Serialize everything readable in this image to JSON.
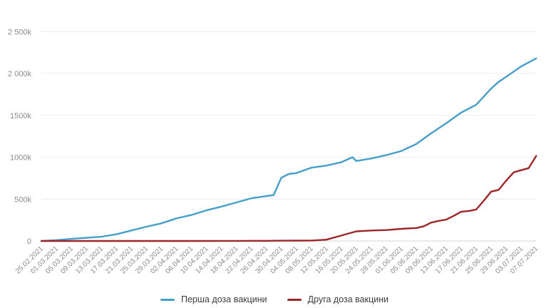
{
  "page": {
    "background": "#ffffff"
  },
  "chart_data": {
    "type": "line",
    "grid": {
      "horizontal": true,
      "vertical": false,
      "color": "#ececec",
      "zero_line_color": "#d7d7d7"
    },
    "legend": {
      "position": "bottom-center"
    },
    "y_axis": {
      "range": [
        0,
        2500
      ],
      "unit": "thousands of doses",
      "ticks": [
        {
          "value": 0,
          "label": "0"
        },
        {
          "value": 500,
          "label": "500k"
        },
        {
          "value": 1000,
          "label": "1000k"
        },
        {
          "value": 1500,
          "label": "1500k"
        },
        {
          "value": 2000,
          "label": "2 000k"
        },
        {
          "value": 2500,
          "label": "2 500k"
        }
      ]
    },
    "x_axis": {
      "range_days": [
        0,
        132
      ],
      "days_per_tick": 4,
      "tick_labels": [
        "25.02.2021",
        "01.03.2021",
        "05.03.2021",
        "09.03.2021",
        "13.03.2021",
        "17.03.2021",
        "21.03.2021",
        "25.03.2021",
        "29.03.2021",
        "02.04.2021",
        "06.04.2021",
        "10.04.2021",
        "14.04.2021",
        "18.04.2021",
        "22.04.2021",
        "26.04.2021",
        "30.04.2021",
        "04.05.2021",
        "08.05.2021",
        "12.05.2021",
        "16.05.2021",
        "20.05.2021",
        "24.05.2021",
        "28.05.2021",
        "01.06.2021",
        "05.06.2021",
        "09.06.2021",
        "13.06.2021",
        "17.06.2021",
        "21.06.2021",
        "25.06.2021",
        "29.06.2021",
        "03.07.2021",
        "07.07.2021"
      ]
    },
    "series": [
      {
        "name": "Перша доза вакцини",
        "color": "#459fc9",
        "points_day_valueK": [
          [
            0,
            1
          ],
          [
            4,
            10
          ],
          [
            8,
            25
          ],
          [
            12,
            38
          ],
          [
            16,
            50
          ],
          [
            20,
            80
          ],
          [
            24,
            125
          ],
          [
            28,
            170
          ],
          [
            32,
            210
          ],
          [
            36,
            270
          ],
          [
            40,
            310
          ],
          [
            44,
            365
          ],
          [
            48,
            410
          ],
          [
            52,
            460
          ],
          [
            56,
            510
          ],
          [
            60,
            535
          ],
          [
            62,
            550
          ],
          [
            64,
            755
          ],
          [
            66,
            800
          ],
          [
            68,
            810
          ],
          [
            72,
            875
          ],
          [
            76,
            900
          ],
          [
            80,
            940
          ],
          [
            83,
            1000
          ],
          [
            84,
            955
          ],
          [
            88,
            985
          ],
          [
            92,
            1025
          ],
          [
            96,
            1073
          ],
          [
            100,
            1158
          ],
          [
            104,
            1286
          ],
          [
            108,
            1405
          ],
          [
            112,
            1533
          ],
          [
            116,
            1627
          ],
          [
            120,
            1820
          ],
          [
            122,
            1900
          ],
          [
            124,
            1960
          ],
          [
            128,
            2085
          ],
          [
            132,
            2180
          ]
        ]
      },
      {
        "name": "Друга доза вакцини",
        "color": "#9c2628",
        "points_day_valueK": [
          [
            0,
            0
          ],
          [
            8,
            0
          ],
          [
            16,
            0
          ],
          [
            24,
            0
          ],
          [
            32,
            0
          ],
          [
            40,
            0
          ],
          [
            48,
            1
          ],
          [
            52,
            1
          ],
          [
            56,
            2
          ],
          [
            60,
            2
          ],
          [
            64,
            3
          ],
          [
            68,
            4
          ],
          [
            72,
            5
          ],
          [
            76,
            15
          ],
          [
            80,
            65
          ],
          [
            84,
            115
          ],
          [
            88,
            125
          ],
          [
            92,
            130
          ],
          [
            96,
            145
          ],
          [
            100,
            155
          ],
          [
            102,
            175
          ],
          [
            104,
            220
          ],
          [
            106,
            240
          ],
          [
            108,
            255
          ],
          [
            110,
            300
          ],
          [
            112,
            350
          ],
          [
            114,
            358
          ],
          [
            116,
            375
          ],
          [
            118,
            480
          ],
          [
            120,
            590
          ],
          [
            122,
            610
          ],
          [
            124,
            720
          ],
          [
            126,
            820
          ],
          [
            128,
            845
          ],
          [
            130,
            870
          ],
          [
            132,
            1015
          ]
        ]
      }
    ]
  }
}
